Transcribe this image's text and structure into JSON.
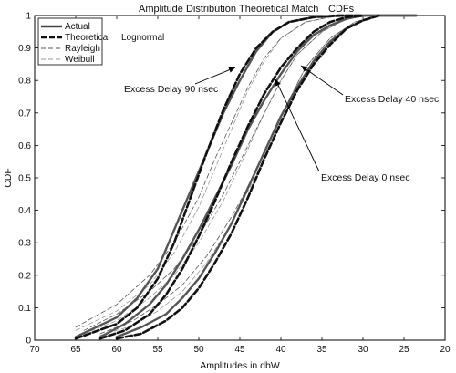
{
  "chart_data": {
    "type": "line",
    "title_parts": [
      "Amplitude Distribution",
      "Theoretical Match",
      "CDFs"
    ],
    "xlabel": "Amplitudes in dbW",
    "ylabel": "CDF",
    "xlim": [
      70,
      20
    ],
    "ylim": [
      0,
      1
    ],
    "x_reversed": true,
    "xticks": [
      70,
      65,
      60,
      55,
      50,
      45,
      40,
      35,
      30,
      25,
      20
    ],
    "yticks": [
      0,
      0.1,
      0.2,
      0.3,
      0.4,
      0.5,
      0.6,
      0.7,
      0.8,
      0.9,
      1
    ],
    "legend_position": "top-left",
    "legend": [
      {
        "label": "Actual",
        "style": "solid-thick"
      },
      {
        "label": "Theoretical",
        "style": "dashed-thick"
      },
      {
        "label": "Rayleigh",
        "style": "dashed-thin"
      },
      {
        "label": "Weibull",
        "style": "dashed-thin-light"
      }
    ],
    "legend_extra_label": "Lognormal",
    "annotations": [
      {
        "text": "Excess Delay 90 nsec",
        "points_to": [
          44.5,
          0.82
        ]
      },
      {
        "text": "Excess Delay 40 nsec",
        "points_to": [
          36.5,
          0.87
        ]
      },
      {
        "text": "Excess Delay 0 nsec",
        "points_to": [
          41.5,
          0.8
        ]
      }
    ],
    "series": [
      {
        "name": "Actual",
        "group": "Excess Delay 90 nsec",
        "style": "actual",
        "x": [
          65,
          60,
          57.5,
          55,
          53,
          51,
          49,
          47,
          45,
          43,
          41,
          39,
          36,
          33,
          30,
          28,
          26,
          23.5
        ],
        "y": [
          0.01,
          0.07,
          0.13,
          0.22,
          0.34,
          0.46,
          0.58,
          0.7,
          0.8,
          0.89,
          0.95,
          0.98,
          0.995,
          1,
          1,
          1,
          1,
          1
        ]
      },
      {
        "name": "Theoretical",
        "group": "Excess Delay 90 nsec",
        "style": "theoretical",
        "x": [
          65,
          60,
          57.5,
          55,
          53,
          51,
          49,
          47,
          45,
          43,
          41,
          39,
          36,
          33,
          30
        ],
        "y": [
          0.005,
          0.05,
          0.1,
          0.19,
          0.3,
          0.44,
          0.58,
          0.71,
          0.82,
          0.9,
          0.95,
          0.98,
          0.995,
          1,
          1
        ]
      },
      {
        "name": "Rayleigh",
        "group": "Excess Delay 90 nsec",
        "style": "rayleigh",
        "x": [
          65,
          60,
          56,
          53,
          50,
          48,
          46,
          44,
          42,
          40,
          37,
          34,
          30
        ],
        "y": [
          0.04,
          0.11,
          0.2,
          0.3,
          0.44,
          0.56,
          0.67,
          0.78,
          0.87,
          0.93,
          0.98,
          0.995,
          1
        ]
      },
      {
        "name": "Weibull",
        "group": "Excess Delay 90 nsec",
        "style": "weibull",
        "x": [
          65,
          60,
          56,
          53,
          50,
          48,
          46,
          44,
          42,
          40,
          37,
          34,
          30
        ],
        "y": [
          0.03,
          0.09,
          0.17,
          0.27,
          0.41,
          0.53,
          0.65,
          0.77,
          0.86,
          0.93,
          0.98,
          0.995,
          1
        ]
      },
      {
        "name": "Actual",
        "group": "Excess Delay 0 nsec",
        "style": "actual",
        "x": [
          62,
          59,
          56,
          54,
          52,
          50,
          48,
          46,
          44,
          42,
          40,
          38,
          36,
          34,
          32,
          30,
          28,
          26,
          23.5
        ],
        "y": [
          0.01,
          0.05,
          0.11,
          0.17,
          0.25,
          0.34,
          0.44,
          0.54,
          0.65,
          0.74,
          0.82,
          0.89,
          0.94,
          0.97,
          0.99,
          1,
          1,
          1,
          1
        ]
      },
      {
        "name": "Theoretical",
        "group": "Excess Delay 0 nsec",
        "style": "theoretical",
        "x": [
          62,
          59,
          56,
          54,
          52,
          50,
          48,
          46,
          44,
          42,
          40,
          38,
          36,
          34,
          32,
          30
        ],
        "y": [
          0.005,
          0.03,
          0.08,
          0.14,
          0.22,
          0.32,
          0.43,
          0.55,
          0.66,
          0.76,
          0.84,
          0.9,
          0.95,
          0.98,
          0.995,
          1
        ]
      },
      {
        "name": "Rayleigh",
        "group": "Excess Delay 0 nsec",
        "style": "rayleigh",
        "x": [
          64,
          60,
          56,
          53,
          50,
          47,
          44,
          42,
          40,
          38,
          35,
          32,
          29
        ],
        "y": [
          0.03,
          0.08,
          0.15,
          0.22,
          0.32,
          0.45,
          0.6,
          0.7,
          0.8,
          0.88,
          0.95,
          0.99,
          1
        ]
      },
      {
        "name": "Weibull",
        "group": "Excess Delay 0 nsec",
        "style": "weibull",
        "x": [
          64,
          60,
          56,
          53,
          50,
          47,
          44,
          42,
          40,
          38,
          35,
          32,
          29
        ],
        "y": [
          0.02,
          0.06,
          0.13,
          0.2,
          0.3,
          0.43,
          0.59,
          0.7,
          0.8,
          0.88,
          0.95,
          0.99,
          1
        ]
      },
      {
        "name": "Actual",
        "group": "Excess Delay 40 nsec",
        "style": "actual",
        "x": [
          60,
          57,
          54,
          52,
          50,
          48,
          46,
          44,
          42,
          40,
          38,
          36,
          34,
          32,
          30,
          28,
          26,
          23.5
        ],
        "y": [
          0.01,
          0.04,
          0.08,
          0.13,
          0.19,
          0.27,
          0.36,
          0.47,
          0.58,
          0.69,
          0.78,
          0.86,
          0.92,
          0.96,
          0.985,
          1,
          1,
          1
        ]
      },
      {
        "name": "Theoretical",
        "group": "Excess Delay 40 nsec",
        "style": "theoretical",
        "x": [
          60,
          57,
          54,
          52,
          50,
          48,
          46,
          44,
          42,
          40,
          38,
          36,
          34,
          32,
          30,
          28
        ],
        "y": [
          0.005,
          0.02,
          0.06,
          0.1,
          0.16,
          0.24,
          0.33,
          0.44,
          0.56,
          0.67,
          0.77,
          0.85,
          0.91,
          0.96,
          0.985,
          1
        ]
      },
      {
        "name": "Rayleigh",
        "group": "Excess Delay 40 nsec",
        "style": "rayleigh",
        "x": [
          62,
          58,
          55,
          52,
          49,
          46,
          43,
          41,
          39,
          37,
          34,
          31,
          28
        ],
        "y": [
          0.02,
          0.06,
          0.11,
          0.17,
          0.26,
          0.38,
          0.52,
          0.63,
          0.74,
          0.84,
          0.93,
          0.98,
          1
        ]
      },
      {
        "name": "Weibull",
        "group": "Excess Delay 40 nsec",
        "style": "weibull",
        "x": [
          62,
          58,
          55,
          52,
          49,
          46,
          43,
          41,
          39,
          37,
          34,
          31,
          28
        ],
        "y": [
          0.015,
          0.045,
          0.09,
          0.15,
          0.24,
          0.36,
          0.51,
          0.62,
          0.74,
          0.84,
          0.93,
          0.98,
          1
        ]
      }
    ]
  }
}
